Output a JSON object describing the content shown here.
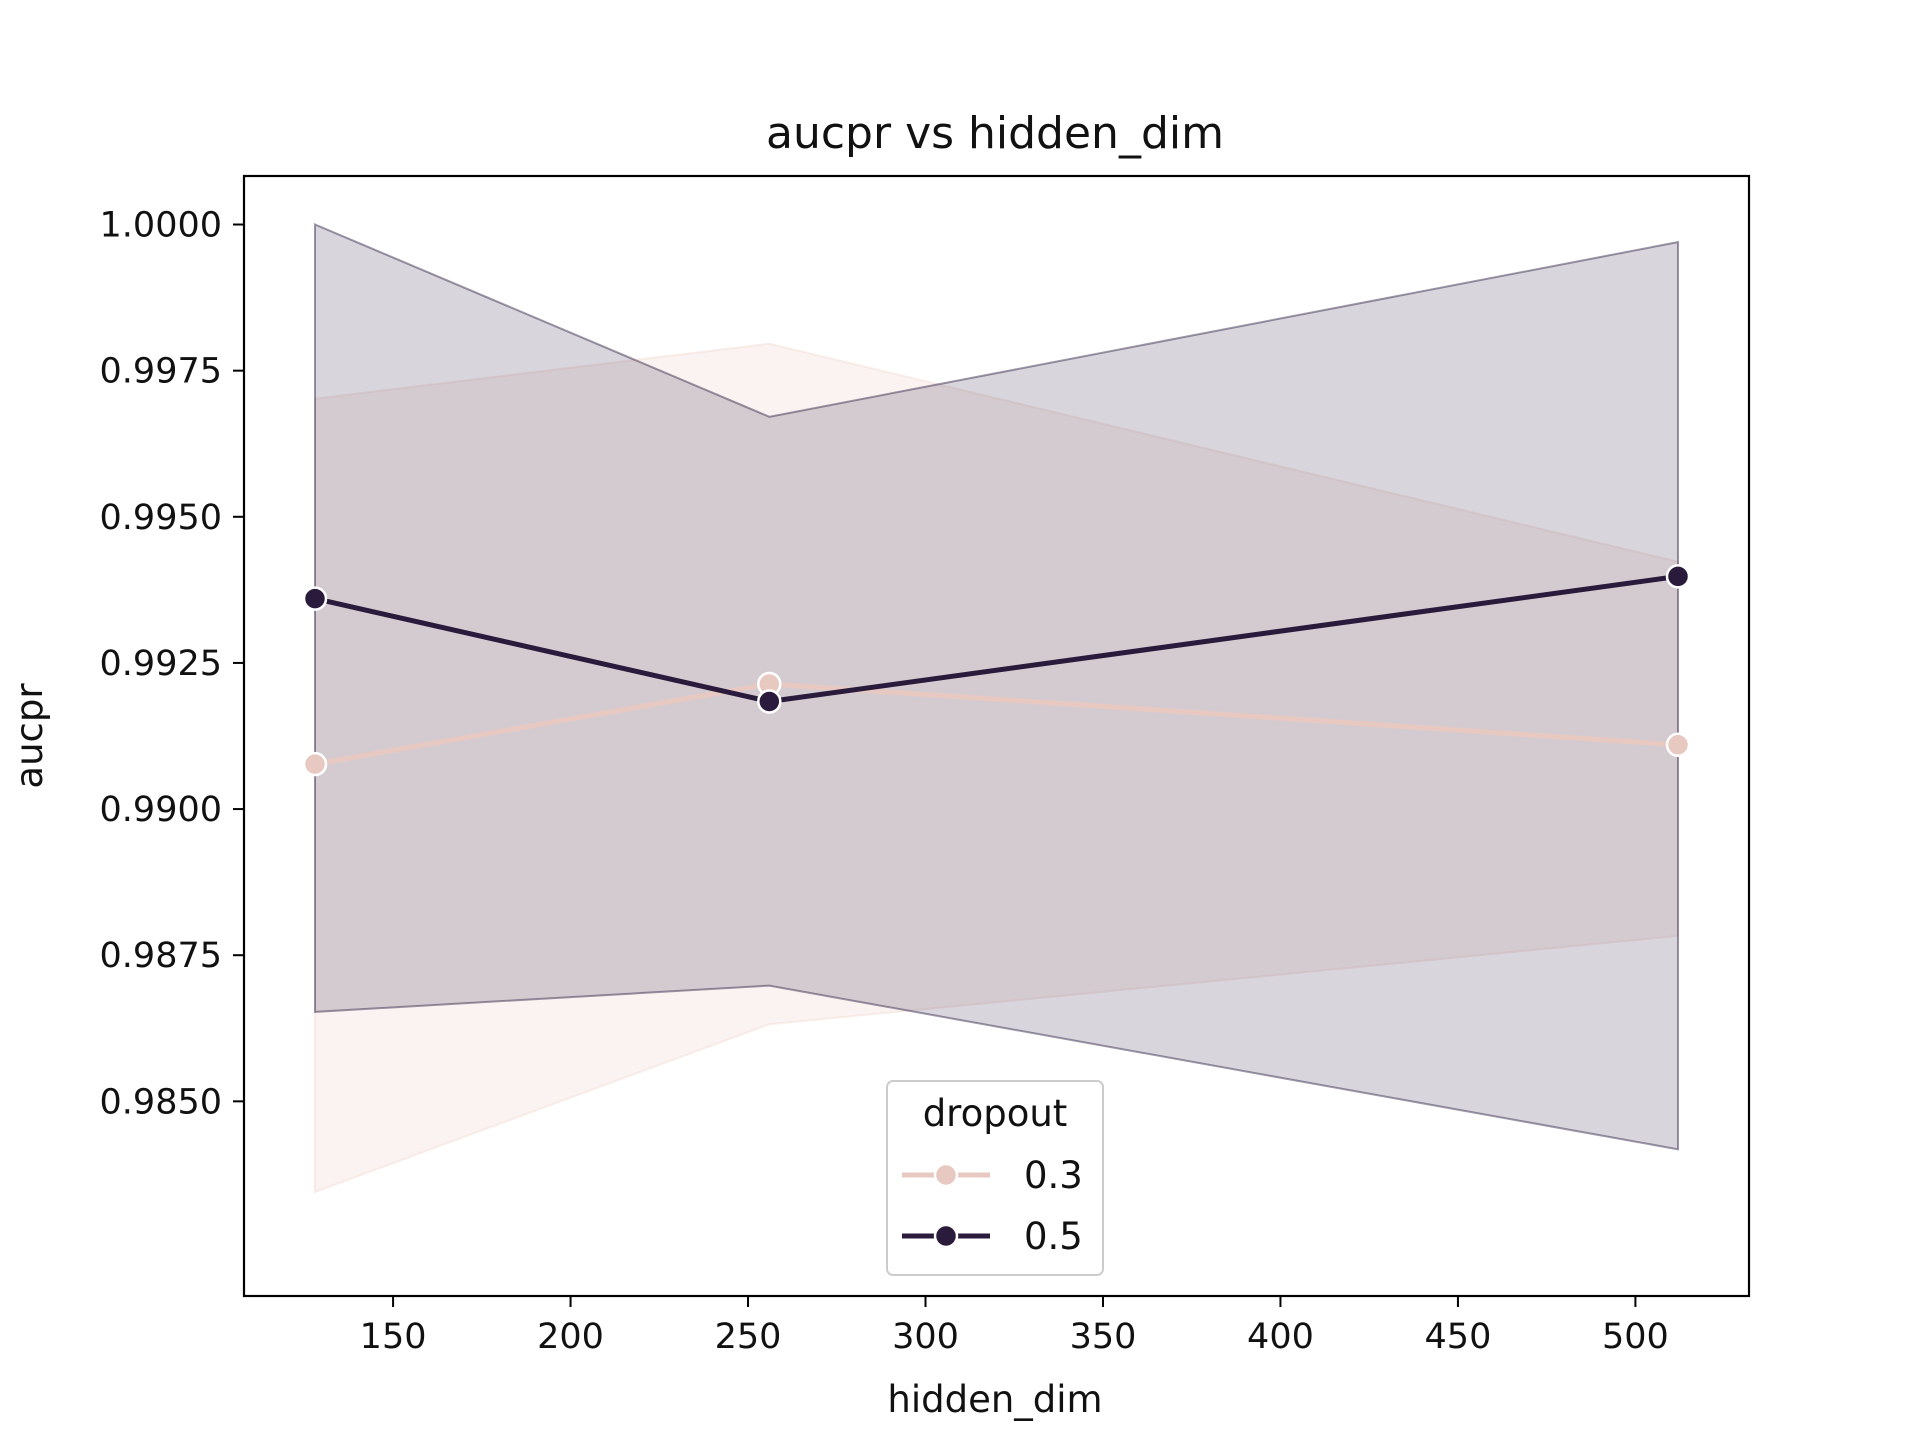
{
  "chart_data": {
    "type": "line",
    "title": "aucpr vs hidden_dim",
    "xlabel": "hidden_dim",
    "ylabel": "aucpr",
    "xlim": [
      108,
      532
    ],
    "ylim": [
      0.98167,
      1.00083
    ],
    "xticks": [
      150,
      200,
      250,
      300,
      350,
      400,
      450,
      500
    ],
    "xtick_labels": [
      "150",
      "200",
      "250",
      "300",
      "350",
      "400",
      "450",
      "500"
    ],
    "yticks": [
      0.985,
      0.9875,
      0.99,
      0.9925,
      0.995,
      0.9975,
      1.0
    ],
    "ytick_labels": [
      "0.9850",
      "0.9875",
      "0.9900",
      "0.9925",
      "0.9950",
      "0.9975",
      "1.0000"
    ],
    "grid": false,
    "legend": {
      "title": "dropout",
      "position": "lower-center"
    },
    "series": [
      {
        "name": "0.3",
        "color": "#e8c9c1",
        "x": [
          128,
          256,
          512
        ],
        "y": [
          0.99077,
          0.99214,
          0.9911
        ],
        "ci_low": [
          0.98345,
          0.98632,
          0.98783
        ],
        "ci_high": [
          0.99702,
          0.99796,
          0.99423
        ]
      },
      {
        "name": "0.5",
        "color": "#2a1b3d",
        "x": [
          128,
          256,
          512
        ],
        "y": [
          0.9936,
          0.99184,
          0.99398
        ],
        "ci_low": [
          0.98653,
          0.98698,
          0.98418
        ],
        "ci_high": [
          1.0,
          0.99671,
          0.9997
        ]
      }
    ]
  }
}
